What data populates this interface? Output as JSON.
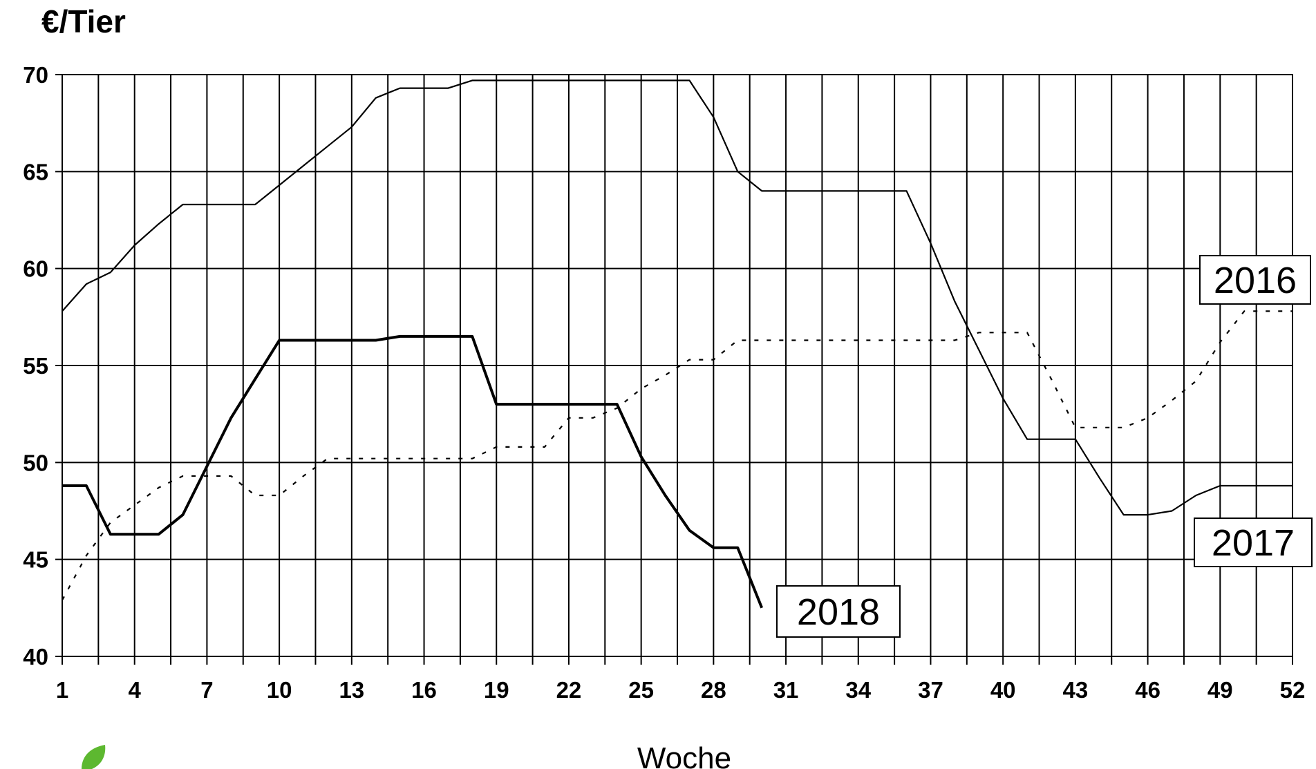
{
  "chart_data": {
    "type": "line",
    "title": "",
    "ylabel": "€/Tier",
    "xlabel": "Woche",
    "ylim": [
      40,
      70
    ],
    "xlim": [
      1,
      52
    ],
    "y_ticks": [
      "40",
      "45",
      "50",
      "55",
      "60",
      "65",
      "70"
    ],
    "x_ticks": [
      "1",
      "4",
      "7",
      "10",
      "13",
      "16",
      "19",
      "22",
      "25",
      "28",
      "31",
      "34",
      "37",
      "40",
      "43",
      "46",
      "49",
      "52"
    ],
    "grid": true,
    "series": [
      {
        "name": "2016",
        "style": "dotted",
        "color": "#000000",
        "x": [
          1,
          2,
          3,
          4,
          5,
          6,
          7,
          8,
          9,
          10,
          11,
          12,
          13,
          14,
          15,
          16,
          17,
          18,
          19,
          20,
          21,
          22,
          23,
          24,
          25,
          26,
          27,
          28,
          29,
          30,
          31,
          32,
          33,
          34,
          35,
          36,
          37,
          38,
          39,
          40,
          41,
          42,
          43,
          44,
          45,
          46,
          47,
          48,
          49,
          50,
          51,
          52
        ],
        "y": [
          42.9,
          45.2,
          46.9,
          47.8,
          48.7,
          49.3,
          49.3,
          49.3,
          48.3,
          48.3,
          49.3,
          50.2,
          50.2,
          50.2,
          50.2,
          50.2,
          50.2,
          50.2,
          50.8,
          50.8,
          50.8,
          52.3,
          52.3,
          52.8,
          53.8,
          54.5,
          55.3,
          55.3,
          56.3,
          56.3,
          56.3,
          56.3,
          56.3,
          56.3,
          56.3,
          56.3,
          56.3,
          56.3,
          56.7,
          56.7,
          56.7,
          54.3,
          51.8,
          51.8,
          51.8,
          52.3,
          53.2,
          54.2,
          56.2,
          57.8,
          57.8,
          57.8
        ]
      },
      {
        "name": "2017",
        "style": "solid",
        "color": "#000000",
        "x": [
          1,
          2,
          3,
          4,
          5,
          6,
          7,
          8,
          9,
          10,
          11,
          12,
          13,
          14,
          15,
          16,
          17,
          18,
          19,
          20,
          21,
          22,
          23,
          24,
          25,
          26,
          27,
          28,
          29,
          30,
          31,
          32,
          33,
          34,
          35,
          36,
          37,
          38,
          39,
          40,
          41,
          42,
          43,
          44,
          45,
          46,
          47,
          48,
          49,
          50,
          51,
          52
        ],
        "y": [
          57.8,
          59.2,
          59.8,
          61.2,
          62.3,
          63.3,
          63.3,
          63.3,
          63.3,
          64.3,
          65.3,
          66.3,
          67.3,
          68.8,
          69.3,
          69.3,
          69.3,
          69.7,
          69.7,
          69.7,
          69.7,
          69.7,
          69.7,
          69.7,
          69.7,
          69.7,
          69.7,
          67.8,
          65.0,
          64.0,
          64.0,
          64.0,
          64.0,
          64.0,
          64.0,
          64.0,
          61.3,
          58.3,
          55.8,
          53.3,
          51.2,
          51.2,
          51.2,
          49.2,
          47.3,
          47.3,
          47.5,
          48.3,
          48.8,
          48.8,
          48.8,
          48.8
        ]
      },
      {
        "name": "2018",
        "style": "solid-thick",
        "color": "#000000",
        "x": [
          1,
          2,
          3,
          4,
          5,
          6,
          7,
          8,
          9,
          10,
          11,
          12,
          13,
          14,
          15,
          16,
          17,
          18,
          19,
          20,
          21,
          22,
          23,
          24,
          25,
          26,
          27,
          28,
          29,
          30
        ],
        "y": [
          48.8,
          48.8,
          46.3,
          46.3,
          46.3,
          47.3,
          49.8,
          52.3,
          54.3,
          56.3,
          56.3,
          56.3,
          56.3,
          56.3,
          56.5,
          56.5,
          56.5,
          56.5,
          53.0,
          53.0,
          53.0,
          53.0,
          53.0,
          53.0,
          50.3,
          48.3,
          46.5,
          45.6,
          45.6,
          42.5
        ]
      }
    ]
  }
}
